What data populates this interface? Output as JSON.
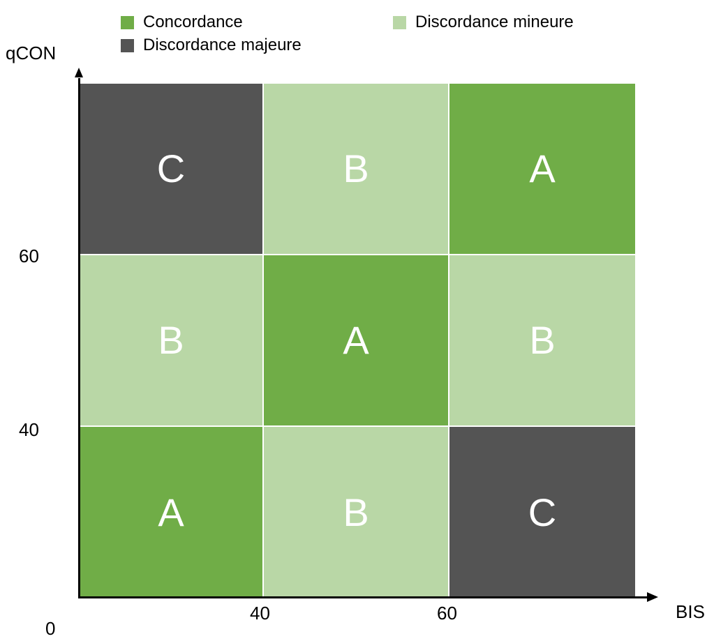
{
  "colors": {
    "concordance": "#70ad47",
    "discordance_mineure": "#b9d7a6",
    "discordance_majeure": "#545454",
    "grid_line": "#ffffff"
  },
  "legend": {
    "concordance": "Concordance",
    "discordance_mineure": "Discordance mineure",
    "discordance_majeure": "Discordance majeure"
  },
  "axes": {
    "y_label": "qCON",
    "x_label": "BIS",
    "origin": "0",
    "y_ticks": [
      "60",
      "40"
    ],
    "x_ticks": [
      "40",
      "60"
    ]
  },
  "grid": {
    "rows": [
      [
        {
          "letter": "C",
          "category": "discordance_majeure"
        },
        {
          "letter": "B",
          "category": "discordance_mineure"
        },
        {
          "letter": "A",
          "category": "concordance"
        }
      ],
      [
        {
          "letter": "B",
          "category": "discordance_mineure"
        },
        {
          "letter": "A",
          "category": "concordance"
        },
        {
          "letter": "B",
          "category": "discordance_mineure"
        }
      ],
      [
        {
          "letter": "A",
          "category": "concordance"
        },
        {
          "letter": "B",
          "category": "discordance_mineure"
        },
        {
          "letter": "C",
          "category": "discordance_majeure"
        }
      ]
    ]
  }
}
